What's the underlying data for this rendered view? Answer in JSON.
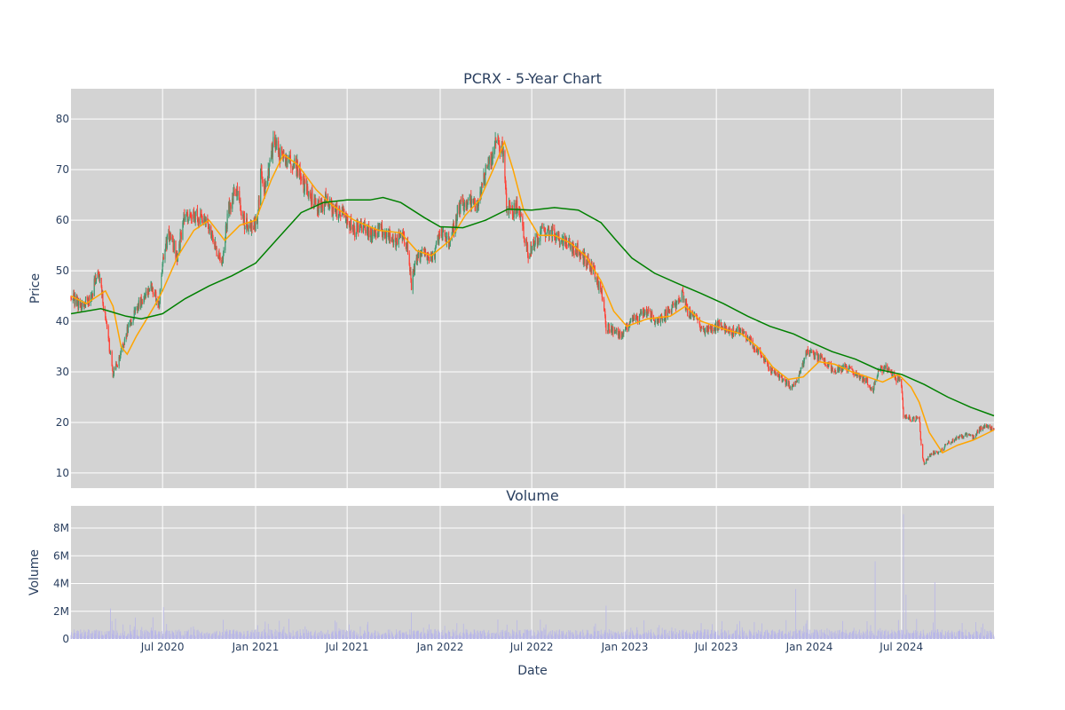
{
  "chart_data": {
    "type": "candlestick",
    "title": "PCRX - 5-Year Chart",
    "price_panel": {
      "ylabel": "Price",
      "ylim": [
        7,
        86
      ],
      "yticks": [
        10,
        20,
        30,
        40,
        50,
        60,
        70,
        80
      ],
      "series": [
        {
          "name": "",
          "kind": "candlestick",
          "up_color": "#3d9970",
          "down_color": "#ff4136"
        },
        {
          "name": "",
          "kind": "line",
          "color": "#ffa500"
        },
        {
          "name": "",
          "kind": "line",
          "color": "#008000"
        }
      ]
    },
    "volume_panel": {
      "title": "Volume",
      "ylabel": "Volume",
      "ylim": [
        0,
        9.6
      ],
      "yticks": [
        0,
        2,
        4,
        6,
        8
      ],
      "ytick_labels": [
        "0",
        "2M",
        "4M",
        "6M",
        "8M"
      ],
      "bar_color": "#b8b6e8"
    },
    "xlabel": "Date",
    "x_range": [
      "2020-01-02",
      "2024-12-31"
    ],
    "x_tick_dates": [
      "2020-07-01",
      "2021-01-01",
      "2021-07-01",
      "2022-01-01",
      "2022-07-01",
      "2023-01-01",
      "2023-07-01",
      "2024-01-01",
      "2024-07-01"
    ],
    "x_tick_labels": [
      "Jul 2020",
      "Jan 2021",
      "Jul 2021",
      "Jan 2022",
      "Jul 2022",
      "Jan 2023",
      "Jul 2023",
      "Jan 2024",
      "Jul 2024"
    ],
    "price_close_points": [
      [
        "2020-01-02",
        45
      ],
      [
        "2020-01-20",
        43
      ],
      [
        "2020-02-10",
        44.5
      ],
      [
        "2020-02-24",
        50
      ],
      [
        "2020-03-05",
        44
      ],
      [
        "2020-03-15",
        37
      ],
      [
        "2020-03-25",
        29.5
      ],
      [
        "2020-04-08",
        33
      ],
      [
        "2020-04-22",
        38
      ],
      [
        "2020-05-08",
        42
      ],
      [
        "2020-05-25",
        45
      ],
      [
        "2020-06-10",
        47
      ],
      [
        "2020-06-24",
        43
      ],
      [
        "2020-07-05",
        55
      ],
      [
        "2020-07-15",
        57
      ],
      [
        "2020-07-30",
        53
      ],
      [
        "2020-08-12",
        60
      ],
      [
        "2020-08-30",
        61.5
      ],
      [
        "2020-09-15",
        60
      ],
      [
        "2020-10-01",
        59
      ],
      [
        "2020-10-15",
        54
      ],
      [
        "2020-10-25",
        51
      ],
      [
        "2020-11-10",
        63
      ],
      [
        "2020-11-25",
        66
      ],
      [
        "2020-12-10",
        59
      ],
      [
        "2020-12-28",
        59
      ],
      [
        "2021-01-05",
        60
      ],
      [
        "2021-01-12",
        70
      ],
      [
        "2021-01-20",
        66
      ],
      [
        "2021-02-05",
        75
      ],
      [
        "2021-02-20",
        73
      ],
      [
        "2021-03-05",
        72
      ],
      [
        "2021-03-25",
        70
      ],
      [
        "2021-04-10",
        66
      ],
      [
        "2021-04-25",
        64
      ],
      [
        "2021-05-10",
        62
      ],
      [
        "2021-05-20",
        64
      ],
      [
        "2021-06-05",
        62
      ],
      [
        "2021-06-25",
        61
      ],
      [
        "2021-07-15",
        58
      ],
      [
        "2021-08-01",
        59
      ],
      [
        "2021-08-20",
        57
      ],
      [
        "2021-09-05",
        58
      ],
      [
        "2021-09-20",
        57
      ],
      [
        "2021-10-05",
        56
      ],
      [
        "2021-10-15",
        58
      ],
      [
        "2021-10-28",
        55
      ],
      [
        "2021-11-05",
        47
      ],
      [
        "2021-11-15",
        53
      ],
      [
        "2021-12-01",
        53
      ],
      [
        "2021-12-20",
        53
      ],
      [
        "2022-01-01",
        58
      ],
      [
        "2022-01-20",
        55
      ],
      [
        "2022-02-05",
        62
      ],
      [
        "2022-02-25",
        64
      ],
      [
        "2022-03-15",
        63
      ],
      [
        "2022-03-25",
        66
      ],
      [
        "2022-04-05",
        72
      ],
      [
        "2022-04-15",
        73
      ],
      [
        "2022-04-25",
        76
      ],
      [
        "2022-05-05",
        74
      ],
      [
        "2022-05-12",
        63
      ],
      [
        "2022-05-25",
        62
      ],
      [
        "2022-06-05",
        63
      ],
      [
        "2022-06-15",
        57
      ],
      [
        "2022-06-25",
        53
      ],
      [
        "2022-07-10",
        56
      ],
      [
        "2022-07-25",
        58
      ],
      [
        "2022-08-15",
        57
      ],
      [
        "2022-08-30",
        56
      ],
      [
        "2022-09-15",
        55
      ],
      [
        "2022-10-01",
        54
      ],
      [
        "2022-10-15",
        52
      ],
      [
        "2022-11-01",
        50
      ],
      [
        "2022-11-15",
        46
      ],
      [
        "2022-11-25",
        39
      ],
      [
        "2022-12-10",
        38
      ],
      [
        "2022-12-28",
        37
      ],
      [
        "2023-01-15",
        41
      ],
      [
        "2023-02-01",
        41
      ],
      [
        "2023-02-15",
        42
      ],
      [
        "2023-03-01",
        40
      ],
      [
        "2023-03-20",
        41
      ],
      [
        "2023-04-10",
        43
      ],
      [
        "2023-04-25",
        46
      ],
      [
        "2023-05-05",
        42
      ],
      [
        "2023-05-20",
        41
      ],
      [
        "2023-06-05",
        38
      ],
      [
        "2023-06-25",
        39
      ],
      [
        "2023-07-15",
        39
      ],
      [
        "2023-08-01",
        38
      ],
      [
        "2023-08-25",
        38
      ],
      [
        "2023-09-15",
        35
      ],
      [
        "2023-10-01",
        33
      ],
      [
        "2023-10-20",
        30
      ],
      [
        "2023-11-05",
        29
      ],
      [
        "2023-11-25",
        27
      ],
      [
        "2023-12-10",
        29
      ],
      [
        "2023-12-28",
        34
      ],
      [
        "2024-01-15",
        33
      ],
      [
        "2024-02-01",
        32
      ],
      [
        "2024-02-20",
        30
      ],
      [
        "2024-03-10",
        31
      ],
      [
        "2024-03-25",
        30
      ],
      [
        "2024-04-10",
        29
      ],
      [
        "2024-04-25",
        28
      ],
      [
        "2024-05-05",
        26
      ],
      [
        "2024-05-15",
        30
      ],
      [
        "2024-05-30",
        31
      ],
      [
        "2024-06-15",
        29
      ],
      [
        "2024-06-30",
        28
      ],
      [
        "2024-07-05",
        21.5
      ],
      [
        "2024-07-20",
        20.5
      ],
      [
        "2024-08-05",
        21
      ],
      [
        "2024-08-10",
        14
      ],
      [
        "2024-08-15",
        12
      ],
      [
        "2024-08-30",
        14
      ],
      [
        "2024-09-15",
        14
      ],
      [
        "2024-10-01",
        16
      ],
      [
        "2024-10-20",
        17
      ],
      [
        "2024-11-05",
        17.5
      ],
      [
        "2024-11-20",
        17
      ],
      [
        "2024-12-05",
        19
      ],
      [
        "2024-12-31",
        19
      ]
    ],
    "ma_short_points": [
      [
        "2020-01-02",
        45
      ],
      [
        "2020-02-01",
        43.5
      ],
      [
        "2020-03-10",
        46
      ],
      [
        "2020-03-25",
        43
      ],
      [
        "2020-04-10",
        35
      ],
      [
        "2020-04-22",
        33.5
      ],
      [
        "2020-05-10",
        37
      ],
      [
        "2020-06-15",
        43
      ],
      [
        "2020-07-01",
        46
      ],
      [
        "2020-08-01",
        53
      ],
      [
        "2020-09-01",
        58
      ],
      [
        "2020-10-01",
        60
      ],
      [
        "2020-11-01",
        56
      ],
      [
        "2020-12-01",
        59
      ],
      [
        "2021-01-01",
        60
      ],
      [
        "2021-02-01",
        68
      ],
      [
        "2021-02-25",
        73
      ],
      [
        "2021-03-25",
        71
      ],
      [
        "2021-05-01",
        66
      ],
      [
        "2021-06-01",
        63
      ],
      [
        "2021-07-15",
        60
      ],
      [
        "2021-09-01",
        58
      ],
      [
        "2021-10-15",
        57.5
      ],
      [
        "2021-11-15",
        54
      ],
      [
        "2021-12-15",
        53
      ],
      [
        "2022-01-20",
        56
      ],
      [
        "2022-02-20",
        61
      ],
      [
        "2022-03-20",
        64
      ],
      [
        "2022-04-20",
        71
      ],
      [
        "2022-05-08",
        75.5
      ],
      [
        "2022-05-25",
        70
      ],
      [
        "2022-06-15",
        62
      ],
      [
        "2022-07-15",
        57
      ],
      [
        "2022-08-15",
        57
      ],
      [
        "2022-09-15",
        55.5
      ],
      [
        "2022-10-15",
        53
      ],
      [
        "2022-11-15",
        48
      ],
      [
        "2022-12-10",
        42
      ],
      [
        "2023-01-05",
        39
      ],
      [
        "2023-02-15",
        40.5
      ],
      [
        "2023-04-01",
        41
      ],
      [
        "2023-05-01",
        43
      ],
      [
        "2023-06-01",
        40
      ],
      [
        "2023-07-15",
        38.5
      ],
      [
        "2023-08-20",
        37.5
      ],
      [
        "2023-09-20",
        35
      ],
      [
        "2023-10-20",
        31
      ],
      [
        "2023-11-20",
        28.5
      ],
      [
        "2023-12-20",
        29
      ],
      [
        "2024-01-20",
        32
      ],
      [
        "2024-02-20",
        31.5
      ],
      [
        "2024-03-25",
        30
      ],
      [
        "2024-04-25",
        29
      ],
      [
        "2024-05-25",
        28
      ],
      [
        "2024-06-25",
        29.5
      ],
      [
        "2024-07-20",
        27
      ],
      [
        "2024-08-05",
        24
      ],
      [
        "2024-08-25",
        18
      ],
      [
        "2024-09-20",
        14
      ],
      [
        "2024-10-20",
        15.5
      ],
      [
        "2024-11-20",
        16.5
      ],
      [
        "2024-12-31",
        18.5
      ]
    ],
    "ma_long_points": [
      [
        "2020-01-02",
        41.5
      ],
      [
        "2020-03-01",
        42.5
      ],
      [
        "2020-04-20",
        41
      ],
      [
        "2020-05-20",
        40.5
      ],
      [
        "2020-07-01",
        41.5
      ],
      [
        "2020-08-15",
        44.5
      ],
      [
        "2020-10-01",
        47
      ],
      [
        "2020-11-15",
        49
      ],
      [
        "2021-01-01",
        51.5
      ],
      [
        "2021-02-15",
        56.5
      ],
      [
        "2021-04-01",
        61.5
      ],
      [
        "2021-05-15",
        63.5
      ],
      [
        "2021-07-01",
        64
      ],
      [
        "2021-08-15",
        64
      ],
      [
        "2021-09-10",
        64.5
      ],
      [
        "2021-10-15",
        63.5
      ],
      [
        "2021-12-01",
        60.5
      ],
      [
        "2022-01-01",
        58.7
      ],
      [
        "2022-02-15",
        58.5
      ],
      [
        "2022-04-01",
        60
      ],
      [
        "2022-05-15",
        62.2
      ],
      [
        "2022-07-01",
        62
      ],
      [
        "2022-08-15",
        62.5
      ],
      [
        "2022-10-01",
        62
      ],
      [
        "2022-11-15",
        59.5
      ],
      [
        "2022-12-15",
        56
      ],
      [
        "2023-01-15",
        52.5
      ],
      [
        "2023-03-01",
        49.5
      ],
      [
        "2023-04-15",
        47.5
      ],
      [
        "2023-06-01",
        45.5
      ],
      [
        "2023-07-15",
        43.5
      ],
      [
        "2023-09-01",
        41
      ],
      [
        "2023-10-15",
        39
      ],
      [
        "2023-12-01",
        37.5
      ],
      [
        "2024-01-01",
        36
      ],
      [
        "2024-02-15",
        34
      ],
      [
        "2024-04-01",
        32.5
      ],
      [
        "2024-05-15",
        30.5
      ],
      [
        "2024-07-01",
        29.5
      ],
      [
        "2024-08-15",
        27.5
      ],
      [
        "2024-10-01",
        25
      ],
      [
        "2024-11-15",
        23
      ],
      [
        "2024-12-31",
        21.3
      ]
    ],
    "volume_spikes_millions": [
      [
        "2020-03-20",
        2.2
      ],
      [
        "2020-06-28",
        2.5
      ],
      [
        "2020-07-03",
        2.3
      ],
      [
        "2020-09-05",
        1.3
      ],
      [
        "2021-06-10",
        1.2
      ],
      [
        "2021-11-05",
        1.9
      ],
      [
        "2022-04-25",
        1.4
      ],
      [
        "2022-11-25",
        2.4
      ],
      [
        "2023-04-01",
        1.5
      ],
      [
        "2023-12-05",
        3.6
      ],
      [
        "2024-05-10",
        5.6
      ],
      [
        "2024-07-05",
        9.0
      ],
      [
        "2024-07-10",
        3.2
      ],
      [
        "2024-08-10",
        6.5
      ],
      [
        "2024-09-05",
        4.1
      ],
      [
        "2024-12-15",
        3.1
      ]
    ]
  }
}
